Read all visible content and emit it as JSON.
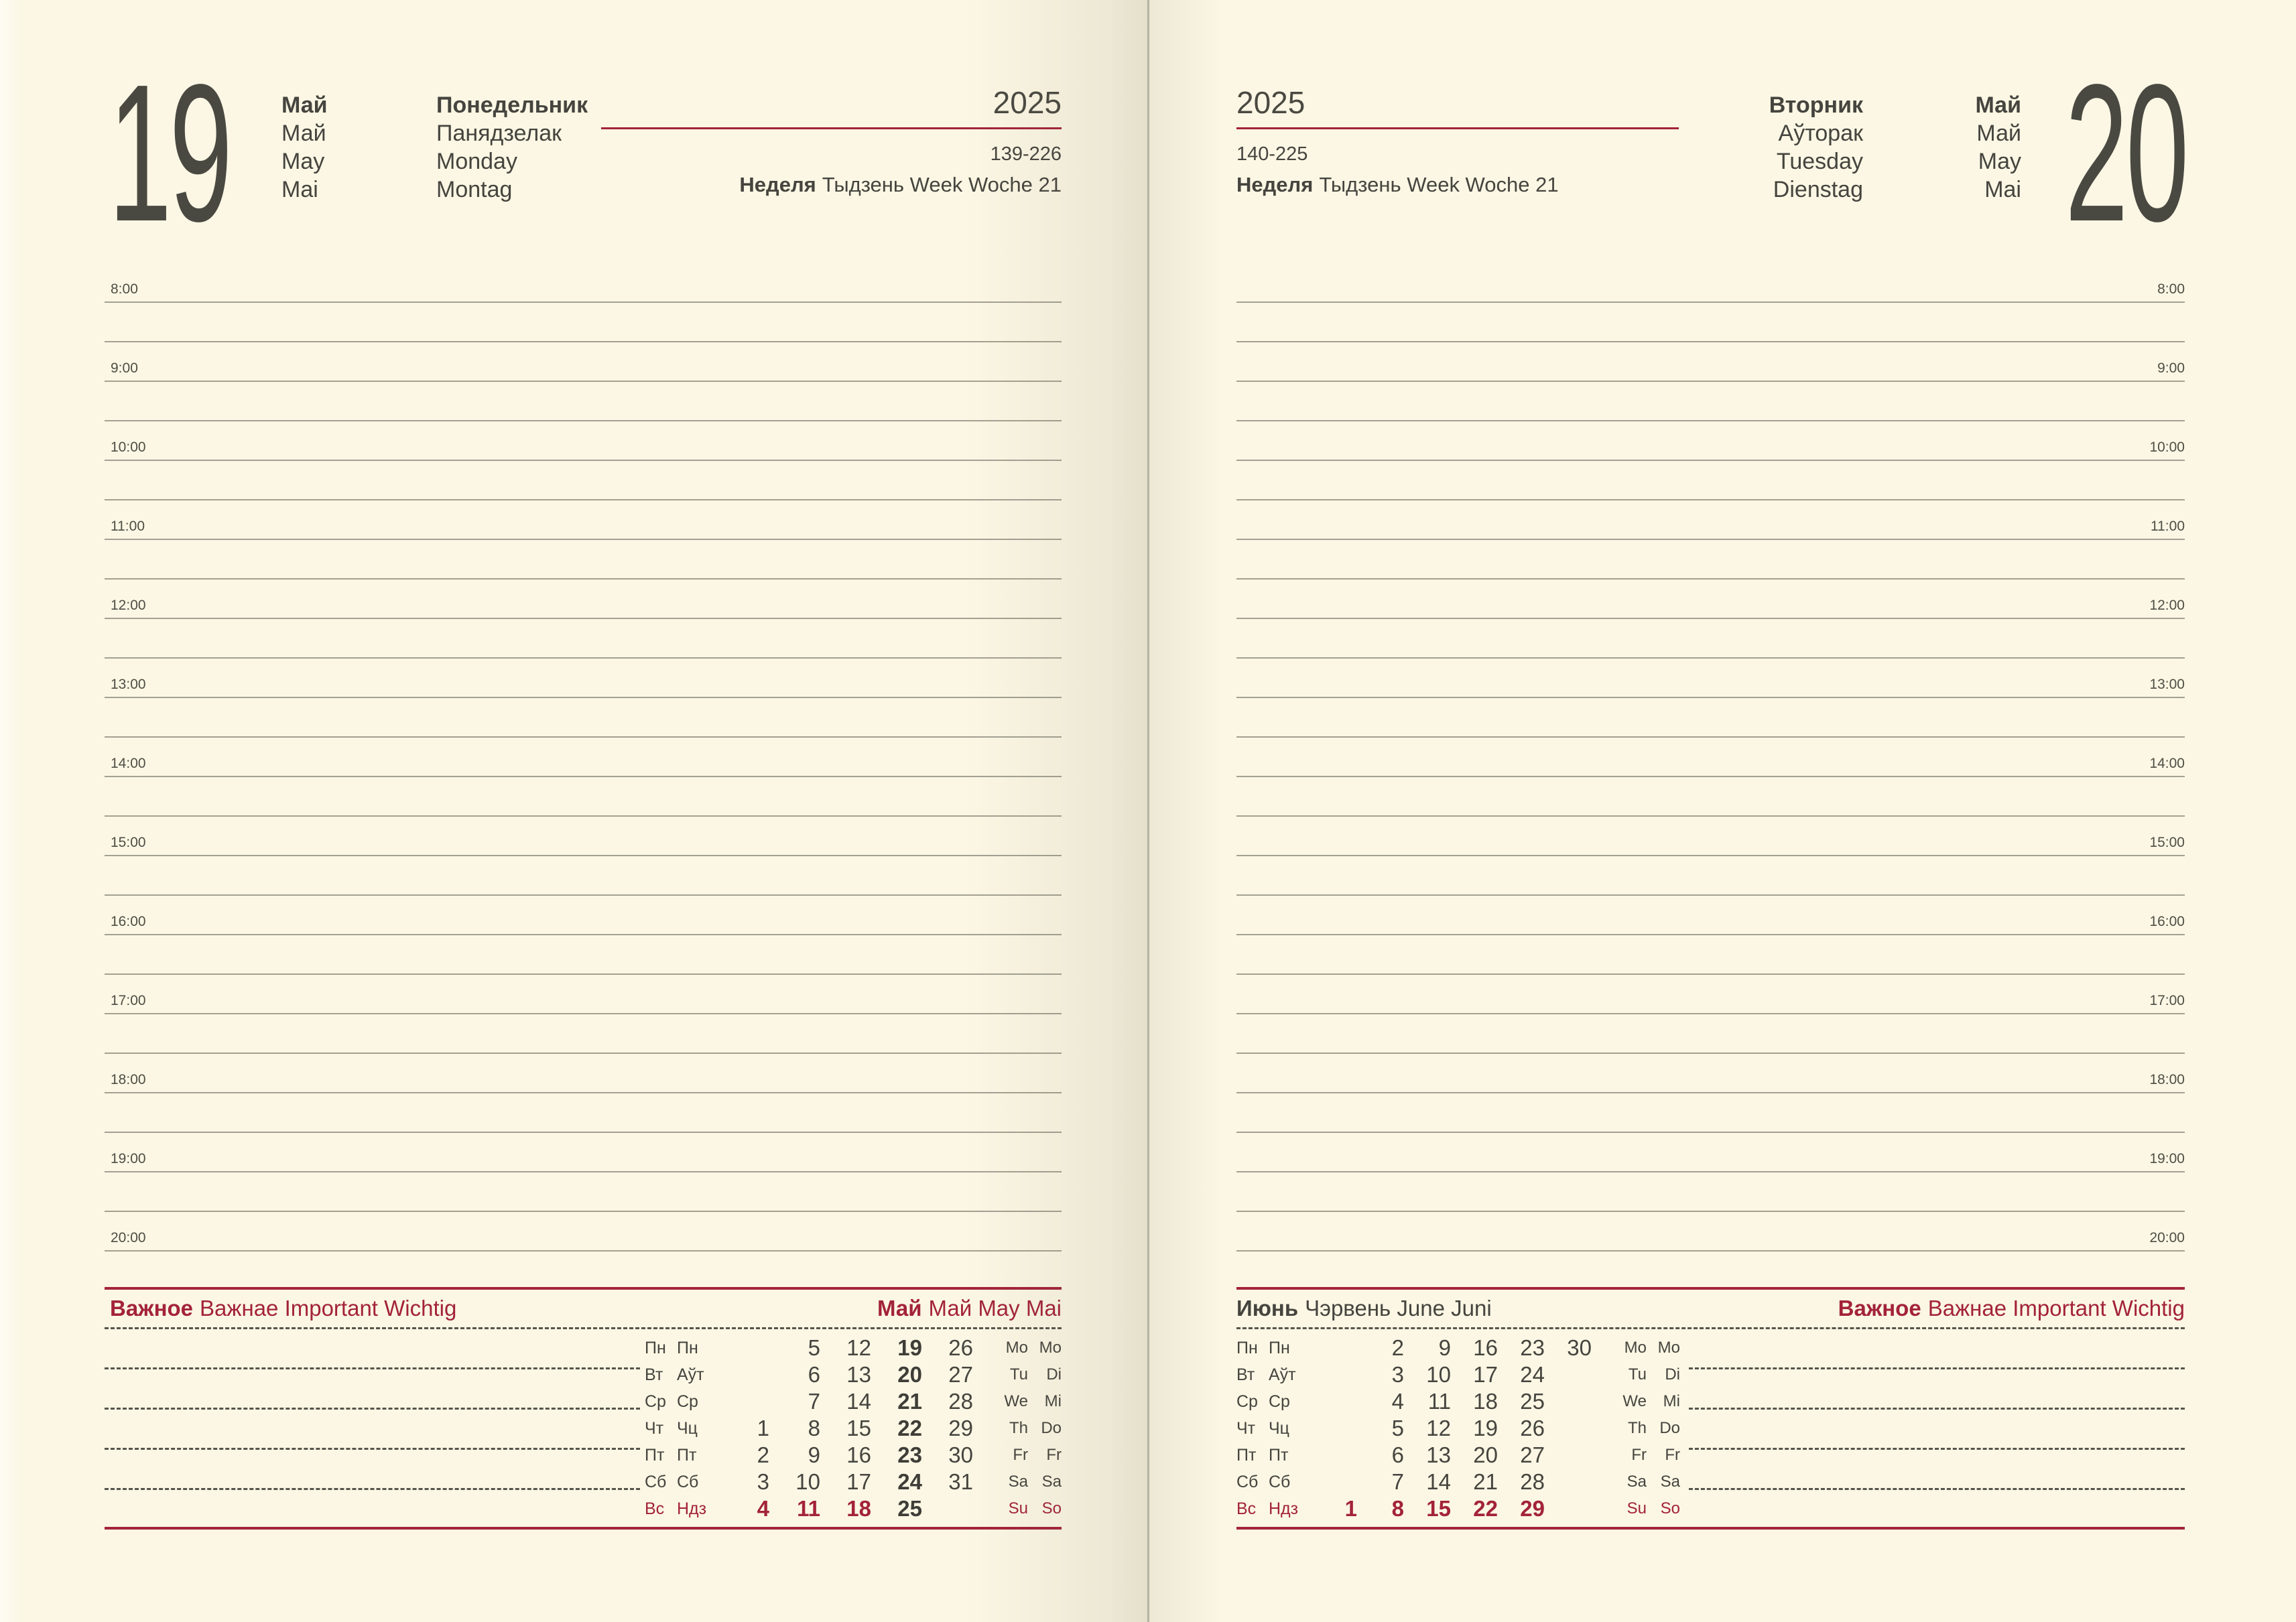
{
  "colors": {
    "paper": "#fbf7e4",
    "ink": "#45443e",
    "accent": "#a32338",
    "rule": "#a3a193",
    "dash": "#56554b"
  },
  "left_page": {
    "day_number": "19",
    "months": [
      "Май",
      "Май",
      "May",
      "Mai"
    ],
    "weekdays": [
      "Понедельник",
      "Панядзелак",
      "Monday",
      "Montag"
    ],
    "year": "2025",
    "page_numbers": "139-226",
    "week": {
      "bold": "Неделя",
      "rest": "Тыдзень Week Woche 21"
    },
    "times": [
      "8:00",
      "9:00",
      "10:00",
      "11:00",
      "12:00",
      "13:00",
      "14:00",
      "15:00",
      "16:00",
      "17:00",
      "18:00",
      "19:00",
      "20:00"
    ],
    "important": {
      "bold": "Важное",
      "rest": "Важнае Important Wichtig"
    },
    "calendar": {
      "title": {
        "bold": "Май",
        "rest": "Май May Mai"
      },
      "highlight_col": 3,
      "rows": [
        {
          "ru": "Пн",
          "be": "Пн",
          "nums": [
            "",
            "5",
            "12",
            "19",
            "26"
          ],
          "en": "Mo",
          "de": "Mo"
        },
        {
          "ru": "Вт",
          "be": "Аўт",
          "nums": [
            "",
            "6",
            "13",
            "20",
            "27"
          ],
          "en": "Tu",
          "de": "Di"
        },
        {
          "ru": "Ср",
          "be": "Ср",
          "nums": [
            "",
            "7",
            "14",
            "21",
            "28"
          ],
          "en": "We",
          "de": "Mi"
        },
        {
          "ru": "Чт",
          "be": "Чц",
          "nums": [
            "1",
            "8",
            "15",
            "22",
            "29"
          ],
          "en": "Th",
          "de": "Do"
        },
        {
          "ru": "Пт",
          "be": "Пт",
          "nums": [
            "2",
            "9",
            "16",
            "23",
            "30"
          ],
          "en": "Fr",
          "de": "Fr"
        },
        {
          "ru": "Сб",
          "be": "Сб",
          "nums": [
            "3",
            "10",
            "17",
            "24",
            "31"
          ],
          "en": "Sa",
          "de": "Sa"
        },
        {
          "ru": "Вс",
          "be": "Ндз",
          "nums": [
            "4",
            "11",
            "18",
            "25",
            ""
          ],
          "en": "Su",
          "de": "So",
          "sunday": true
        }
      ]
    }
  },
  "right_page": {
    "day_number": "20",
    "months": [
      "Май",
      "Май",
      "May",
      "Mai"
    ],
    "weekdays": [
      "Вторник",
      "Аўторак",
      "Tuesday",
      "Dienstag"
    ],
    "year": "2025",
    "page_numbers": "140-225",
    "week": {
      "bold": "Неделя",
      "rest": "Тыдзень Week Woche 21"
    },
    "times": [
      "8:00",
      "9:00",
      "10:00",
      "11:00",
      "12:00",
      "13:00",
      "14:00",
      "15:00",
      "16:00",
      "17:00",
      "18:00",
      "19:00",
      "20:00"
    ],
    "important": {
      "bold": "Важное",
      "rest": "Важнае Important Wichtig"
    },
    "calendar": {
      "title": {
        "bold": "Июнь",
        "rest": "Чэрвень June Juni"
      },
      "highlight_col": null,
      "rows": [
        {
          "ru": "Пн",
          "be": "Пн",
          "nums": [
            "",
            "2",
            "9",
            "16",
            "23",
            "30"
          ],
          "en": "Mo",
          "de": "Mo"
        },
        {
          "ru": "Вт",
          "be": "Аўт",
          "nums": [
            "",
            "3",
            "10",
            "17",
            "24",
            ""
          ],
          "en": "Tu",
          "de": "Di"
        },
        {
          "ru": "Ср",
          "be": "Ср",
          "nums": [
            "",
            "4",
            "11",
            "18",
            "25",
            ""
          ],
          "en": "We",
          "de": "Mi"
        },
        {
          "ru": "Чт",
          "be": "Чц",
          "nums": [
            "",
            "5",
            "12",
            "19",
            "26",
            ""
          ],
          "en": "Th",
          "de": "Do"
        },
        {
          "ru": "Пт",
          "be": "Пт",
          "nums": [
            "",
            "6",
            "13",
            "20",
            "27",
            ""
          ],
          "en": "Fr",
          "de": "Fr"
        },
        {
          "ru": "Сб",
          "be": "Сб",
          "nums": [
            "",
            "7",
            "14",
            "21",
            "28",
            ""
          ],
          "en": "Sa",
          "de": "Sa"
        },
        {
          "ru": "Вс",
          "be": "Ндз",
          "nums": [
            "1",
            "8",
            "15",
            "22",
            "29",
            ""
          ],
          "en": "Su",
          "de": "So",
          "sunday": true
        }
      ]
    }
  }
}
